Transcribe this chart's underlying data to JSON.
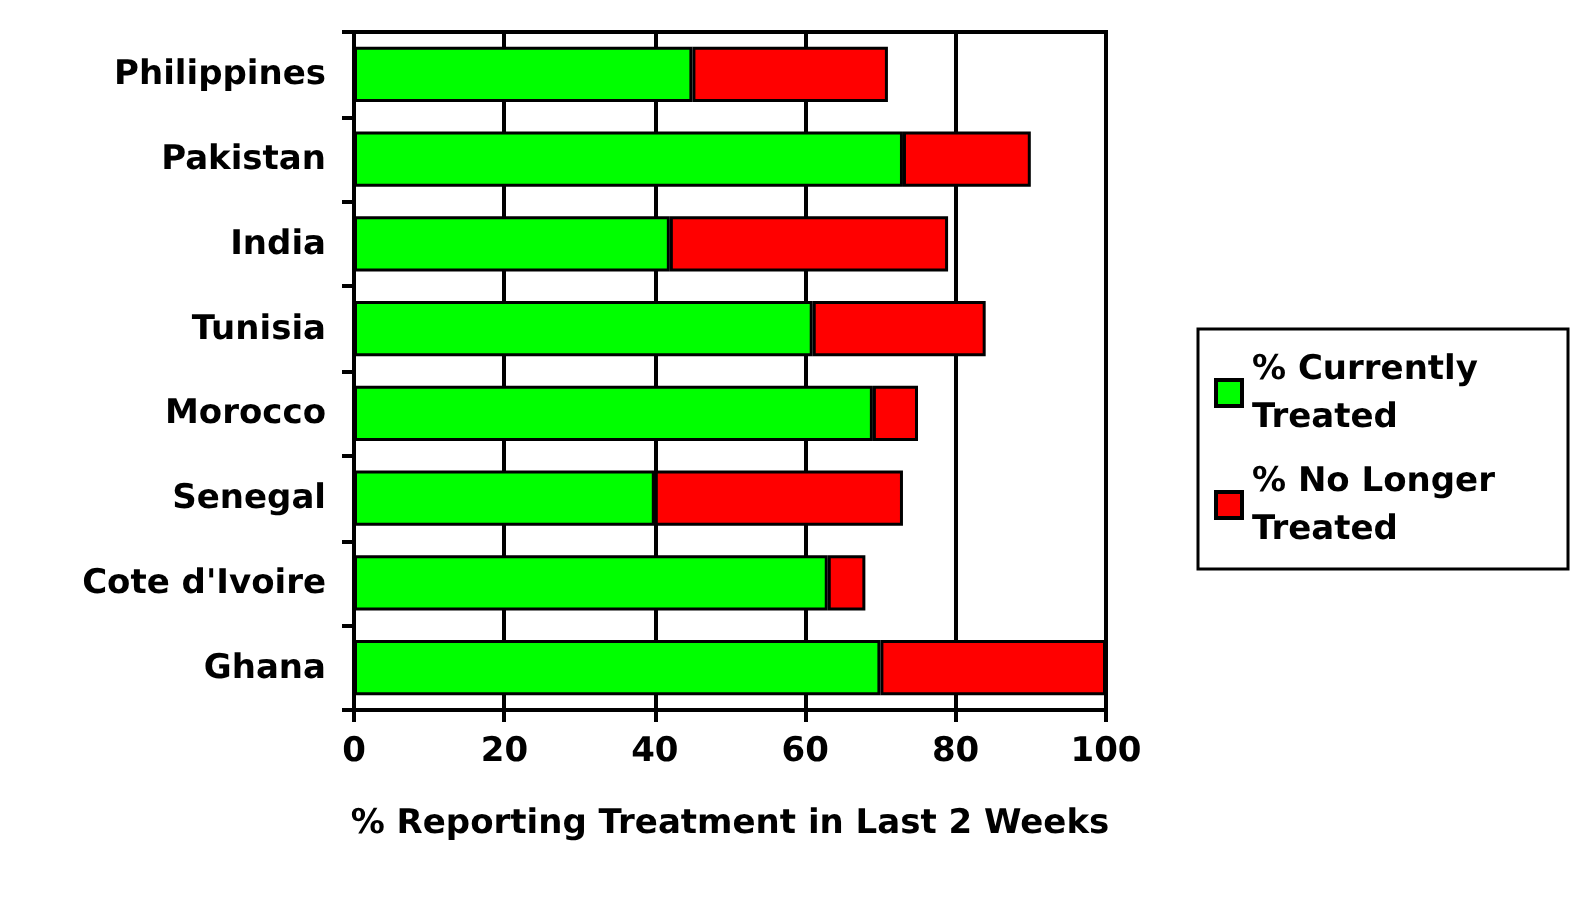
{
  "chart_data": {
    "type": "bar",
    "orientation": "horizontal",
    "stacked": true,
    "xlabel": "% Reporting Treatment in Last 2 Weeks",
    "categories": [
      "Philippines",
      "Pakistan",
      "India",
      "Tunisia",
      "Morocco",
      "Senegal",
      "Cote d'Ivoire",
      "Ghana"
    ],
    "series": [
      {
        "name": "% Currently Treated",
        "color": "#00ff00",
        "values": [
          45,
          73,
          42,
          61,
          69,
          40,
          63,
          70
        ]
      },
      {
        "name": "% No Longer Treated",
        "color": "#ff0000",
        "values": [
          26,
          17,
          37,
          23,
          6,
          33,
          5,
          30
        ]
      }
    ],
    "xlim": [
      0,
      100
    ],
    "xticks": [
      0,
      20,
      40,
      60,
      80,
      100
    ],
    "grid": "x",
    "legend": "right"
  }
}
